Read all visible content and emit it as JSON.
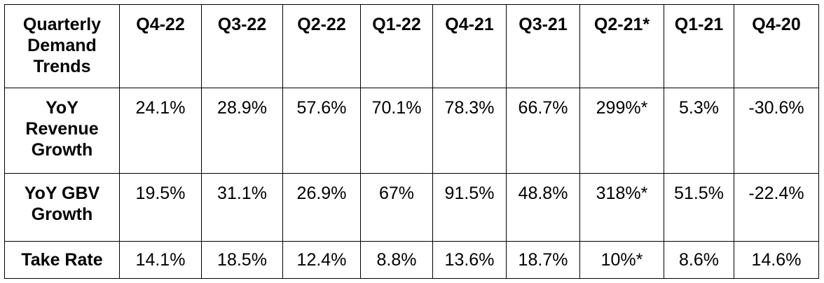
{
  "table": {
    "header": [
      "Quarterly Demand Trends",
      "Q4-22",
      "Q3-22",
      "Q2-22",
      "Q1-22",
      "Q4-21",
      "Q3-21",
      "Q2-21*",
      "Q1-21",
      "Q4-20"
    ],
    "rows": [
      [
        "YoY Revenue Growth",
        "24.1%",
        "28.9%",
        "57.6%",
        "70.1%",
        "78.3%",
        "66.7%",
        "299%*",
        "5.3%",
        "-30.6%"
      ],
      [
        "YoY GBV Growth",
        "19.5%",
        "31.1%",
        "26.9%",
        "67%",
        "91.5%",
        "48.8%",
        "318%*",
        "51.5%",
        "-22.4%"
      ],
      [
        "Take Rate",
        "14.1%",
        "18.5%",
        "12.4%",
        "8.8%",
        "13.6%",
        "18.7%",
        "10%*",
        "8.6%",
        "14.6%"
      ]
    ]
  }
}
